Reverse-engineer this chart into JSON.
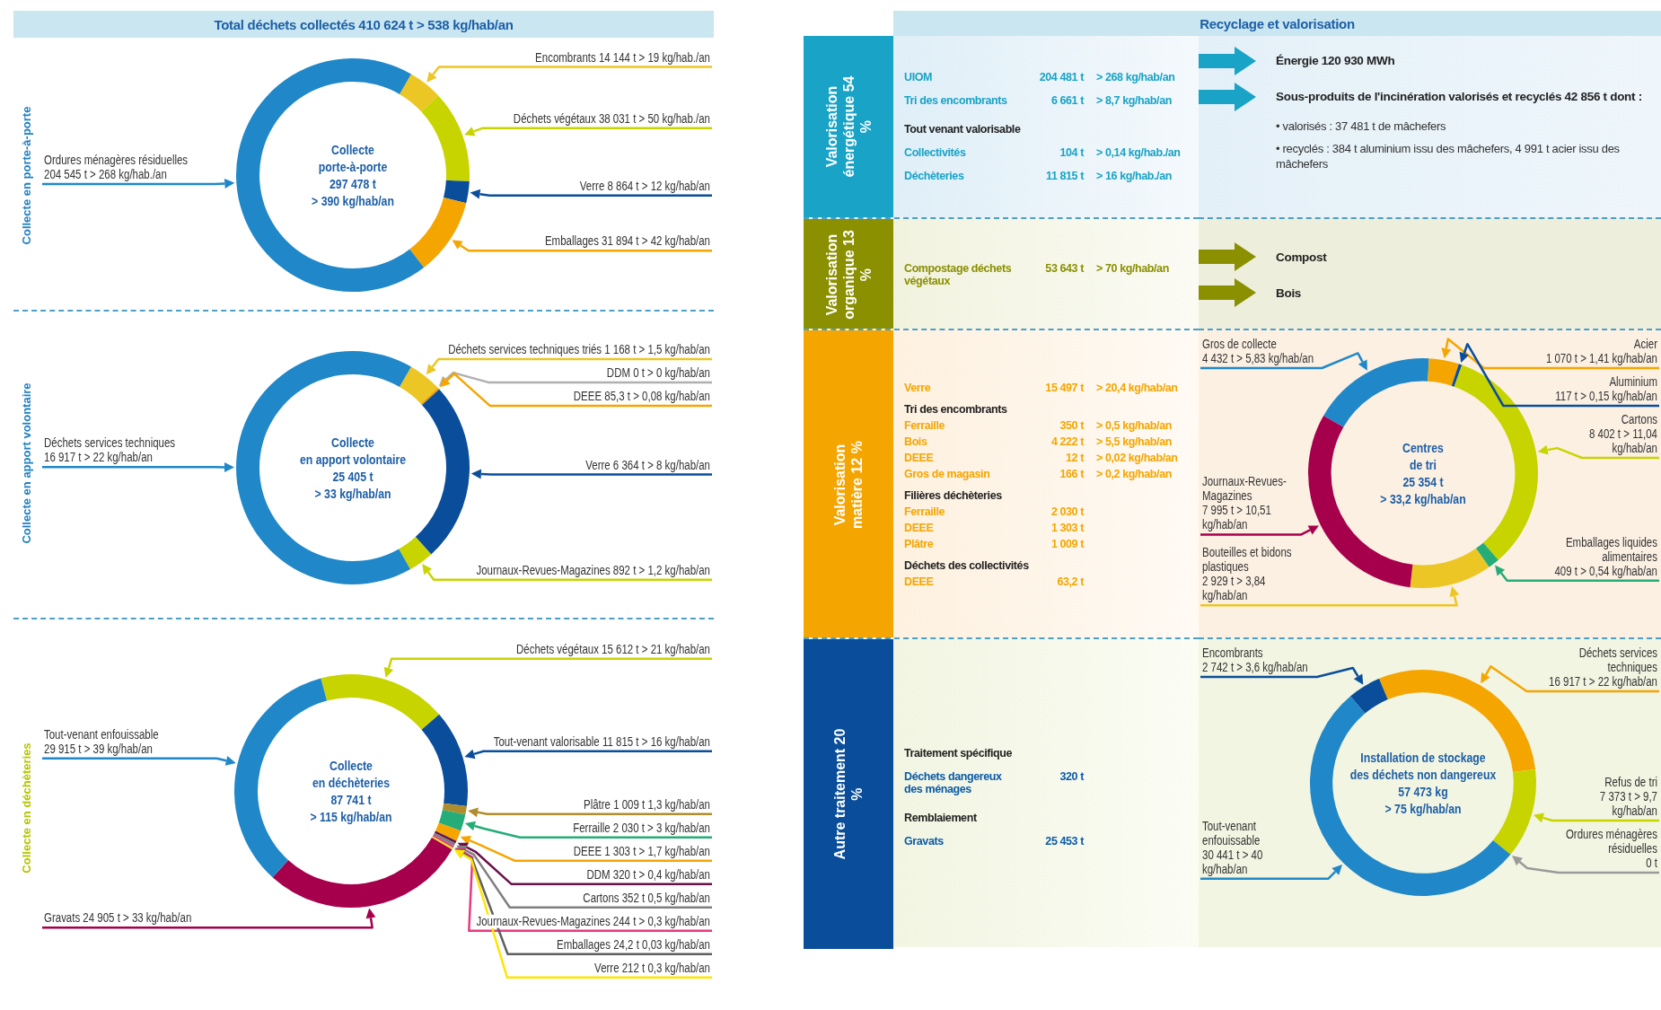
{
  "chart_data": [
    {
      "type": "other",
      "title": "Total déchets collectés 410 624 t > 538 kg/hab/an"
    },
    {
      "type": "donut",
      "title": "Collecte en porte-à-porte",
      "annotations": [
        "Collecte",
        "porte-à-porte",
        "297 478 t",
        "> 390 kg/hab/an"
      ],
      "categories": [
        "Encombrants",
        "Déchets végétaux",
        "Verre",
        "Emballages",
        "Ordures ménagères résiduelles"
      ],
      "values": [
        14144,
        38031,
        8864,
        31894,
        204545
      ],
      "colors": [
        "#ecc624",
        "#c8d400",
        "#0a4e9b",
        "#f5a500",
        "#2088c9"
      ],
      "value_labels": [
        "14 144 t > 19 kg/hab./an",
        "38 031 t > 50 kg/hab./an",
        "8 864 t > 12 kg/hab/an",
        "31 894 t > 42 kg/hab/an",
        "204 545 t > 268 kg/hab./an"
      ]
    },
    {
      "type": "donut",
      "title": "Collecte en apport volontaire",
      "annotations": [
        "Collecte",
        "en apport volontaire",
        "25 405 t",
        "> 33 kg/hab/an"
      ],
      "categories": [
        "Déchets services techniques triés",
        "DDM",
        "DEEE",
        "Verre",
        "Journaux-Revues-Magazines",
        "Déchets services techniques"
      ],
      "values": [
        1168,
        0,
        85.3,
        6364,
        892,
        16917
      ],
      "colors": [
        "#ecc624",
        "#b0b0b0",
        "#f5a500",
        "#0a4e9b",
        "#c8d400",
        "#2088c9"
      ],
      "value_labels": [
        "1 168 t > 1,5 kg/hab/an",
        "0 t > 0 kg/hab/an",
        "85,3 t > 0,08 kg/hab/an",
        "6 364 t > 8 kg/hab/an",
        "892 t > 1,2 kg/hab/an",
        "16 917 t > 22 kg/hab/an"
      ]
    },
    {
      "type": "donut",
      "title": "Collecte en déchèteries",
      "annotations": [
        "Collecte",
        "en déchèteries",
        "87 741 t",
        "> 115 kg/hab/an"
      ],
      "categories": [
        "Déchets végétaux",
        "Tout-venant valorisable",
        "Plâtre",
        "Ferraille",
        "DEEE",
        "DDM",
        "Cartons",
        "Journaux-Revues-Magazines",
        "Emballages",
        "Verre",
        "Gravats",
        "Tout-venant enfouissable"
      ],
      "values": [
        15612,
        11815,
        1009,
        2030,
        1303,
        320,
        352,
        244,
        24.2,
        212,
        24905,
        29915
      ],
      "colors": [
        "#c8d400",
        "#0a4e9b",
        "#b08d2c",
        "#24ad78",
        "#f5a500",
        "#6a1048",
        "#7f7f7f",
        "#e8387f",
        "#5f5f5f",
        "#ffe500",
        "#a6004d",
        "#2088c9"
      ],
      "value_labels": [
        "15 612 t > 21 kg/hab/an",
        "11 815 t > 16 kg/hab/an",
        "1 009 t 1,3 kg/hab/an",
        "2 030 t > 3 kg/hab/an",
        "1 303 t > 1,7 kg/hab/an",
        "320 t > 0,4 kg/hab/an",
        "352 t 0,5 kg/hab/an",
        "244 t > 0,3 kg/hab/an",
        "24,2 t 0,03 kg/hab/an",
        "212 t 0,3 kg/hab/an",
        "24 905 t > 33 kg/hab/an",
        "29 915 t > 39 kg/hab/an"
      ]
    },
    {
      "type": "other",
      "title": "Recyclage et valorisation"
    },
    {
      "type": "other",
      "title": "Valorisation énergétique 54 %",
      "annotations": [
        "UIOM\t204 481 t\t> 268 kg/hab/an",
        "Tri des encombrants\t6 661 t\t> 8,7 kg/hab/an",
        "Tout venant valorisable",
        "Collectivités\t104 t\t> 0,14 kg/hab./an",
        "Déchèteries\t11 815 t\t> 16 kg/hab./an"
      ]
    },
    {
      "type": "other",
      "annotations": [
        "Énergie 120 930 MWh",
        "Sous-produits de l'incinération valorisés et recyclés 42 856 t dont :",
        "• valorisés : 37 481 t de mâchefers",
        "• recyclés : 384 t aluminium issu des mâchefers, 4 991 t acier issu des mâchefers"
      ]
    },
    {
      "type": "other",
      "title": "Valorisation organique 13 %",
      "annotations": [
        "Compostage déchets végétaux\t53 643 t\t> 70 kg/hab/an"
      ]
    },
    {
      "type": "other",
      "annotations": [
        "Compost",
        "Bois"
      ]
    },
    {
      "type": "other",
      "title": "Valorisation matière 12 %",
      "annotations": [
        "Verre\t15 497 t\t> 20,4 kg/hab/an",
        "Tri des encombrants",
        "Ferraille\t350 t\t> 0,5 kg/hab/an",
        "Bois\t4 222 t\t> 5,5 kg/hab/an",
        "DEEE\t12 t\t> 0,02 kg/hab/an",
        "Gros de magasin\t166 t\t> 0,2 kg/hab/an",
        "Filières déchèteries",
        "Ferraille\t2 030 t",
        "DEEE\t1 303 t",
        "Plâtre\t1 009 t",
        "Déchets des collectivités",
        "DEEE\t63,2 t"
      ]
    },
    {
      "type": "donut",
      "annotations": [
        "Centres",
        "de tri",
        "25 354 t",
        "> 33,2 kg/hab/an"
      ],
      "categories": [
        "Gros de collecte",
        "Acier",
        "Aluminium",
        "Cartons",
        "Emballages liquides alimentaires",
        "Bouteilles et bidons plastiques",
        "Journaux-Revues-Magazines"
      ],
      "values": [
        4432,
        1070,
        117,
        8402,
        409,
        2929,
        7995
      ],
      "colors": [
        "#2088c9",
        "#f5a500",
        "#0a4e9b",
        "#c8d400",
        "#24ad78",
        "#ecc624",
        "#a6004d"
      ],
      "value_labels": [
        "4 432 t > 5,83 kg/hab/an",
        "1 070 t > 1,41 kg/hab/an",
        "117 t > 0,15 kg/hab/an",
        "8 402 t > 11,04 kg/hab/an",
        "409 t > 0,54 kg/hab/an",
        "2 929 t > 3,84 kg/hab/an",
        "7 995 t > 10,51 kg/hab/an"
      ]
    },
    {
      "type": "other",
      "title": "Autre traitement 20 %",
      "annotations": [
        "Traitement spécifique",
        "Déchets dangereux des ménages\t320 t",
        "Remblaiement",
        "Gravats\t25 453 t"
      ]
    },
    {
      "type": "donut",
      "annotations": [
        "Installation de stockage",
        "des déchets non dangereux",
        "57 473 kg",
        "> 75 kg/hab/an"
      ],
      "categories": [
        "Encombrants",
        "Déchets services techniques",
        "Refus de tri",
        "Ordures ménagères résiduelles",
        "Tout-venant enfouissable"
      ],
      "values": [
        2742,
        16917,
        7373,
        0,
        30441
      ],
      "colors": [
        "#0a4e9b",
        "#f5a500",
        "#c8d400",
        "#9a9a9a",
        "#2088c9"
      ],
      "value_labels": [
        "2 742 t > 3,6 kg/hab/an",
        "16 917 t > 22 kg/hab/an",
        "7 373 t > 9,7 kg/hab/an",
        "0 t",
        "30 441 t > 40 kg/hab/an"
      ]
    }
  ]
}
